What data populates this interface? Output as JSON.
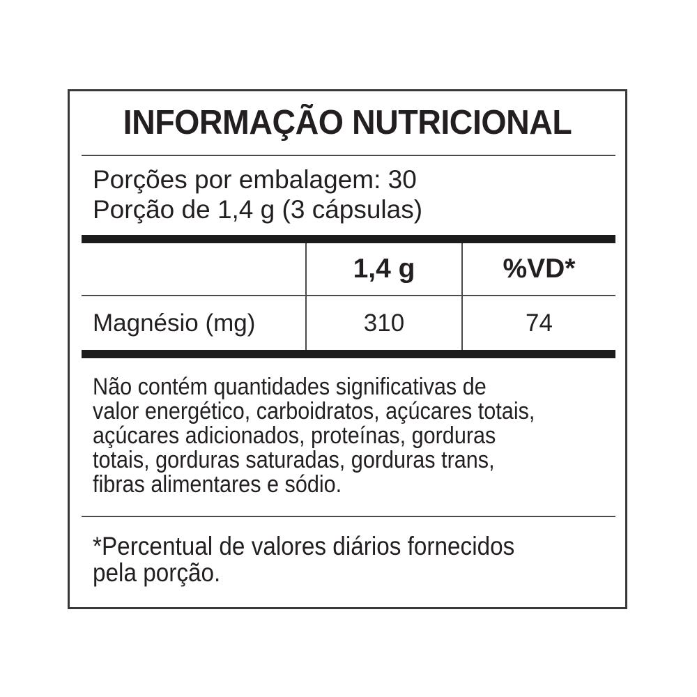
{
  "label": {
    "title": "INFORMAÇÃO NUTRICIONAL",
    "serving_info": {
      "servings_per_package": "Porções por embalagem: 30",
      "serving_size": "Porção de 1,4 g (3 cápsulas)"
    },
    "table": {
      "columns": [
        "",
        "1,4 g",
        "%VD*"
      ],
      "rows": [
        {
          "nutrient": "Magnésio (mg)",
          "amount": "310",
          "vd": "74"
        }
      ]
    },
    "no_significant_amounts": {
      "lines": [
        "Não contém quantidades significativas de",
        "valor energético, carboidratos, açúcares totais,",
        "açúcares adicionados, proteínas, gorduras",
        "totais, gorduras saturadas, gorduras trans,",
        "fibras alimentares e sódio."
      ]
    },
    "footnote": {
      "lines": [
        "*Percentual de valores diários fornecidos",
        "pela porção."
      ]
    },
    "colors": {
      "background": "#ffffff",
      "text": "#231f20",
      "thin_rule": "#4a4a4a",
      "thick_bar": "#1c1c1c",
      "border": "#383838"
    }
  }
}
